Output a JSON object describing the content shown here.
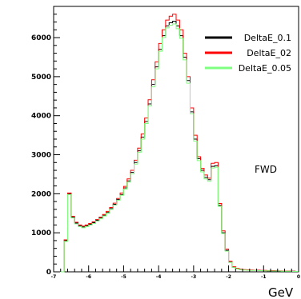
{
  "chart_data": {
    "type": "line",
    "title": "",
    "xlabel": "GeV",
    "ylabel": "",
    "xlim": [
      -7,
      0
    ],
    "ylim": [
      0,
      6800
    ],
    "x_ticks": [
      -7,
      -6,
      -5,
      -4,
      -3,
      -2,
      -1,
      0
    ],
    "x_tick_labels": [
      "-7",
      "-6",
      "-5",
      "-4",
      "-3",
      "-2",
      "-1",
      "0"
    ],
    "y_ticks": [
      0,
      1000,
      2000,
      3000,
      4000,
      5000,
      6000
    ],
    "y_tick_labels": [
      "0",
      "1000",
      "2000",
      "3000",
      "4000",
      "5000",
      "6000"
    ],
    "grid": false,
    "legend_position": "top-right",
    "annotation": "FWD",
    "x": [
      -6.95,
      -6.85,
      -6.75,
      -6.65,
      -6.55,
      -6.45,
      -6.35,
      -6.25,
      -6.15,
      -6.05,
      -5.95,
      -5.85,
      -5.75,
      -5.65,
      -5.55,
      -5.45,
      -5.35,
      -5.25,
      -5.15,
      -5.05,
      -4.95,
      -4.85,
      -4.75,
      -4.65,
      -4.55,
      -4.45,
      -4.35,
      -4.25,
      -4.15,
      -4.05,
      -3.95,
      -3.85,
      -3.75,
      -3.65,
      -3.55,
      -3.45,
      -3.35,
      -3.25,
      -3.15,
      -3.05,
      -2.95,
      -2.85,
      -2.75,
      -2.65,
      -2.55,
      -2.45,
      -2.35,
      -2.25,
      -2.15,
      -2.05,
      -1.95,
      -1.85,
      -1.75,
      -1.65,
      -1.55,
      -1.45,
      -1.35,
      -1.25,
      -1.15,
      -1.05,
      -0.95,
      -0.85,
      -0.75,
      -0.65,
      -0.55,
      -0.45,
      -0.35,
      -0.25,
      -0.15,
      -0.05
    ],
    "series": [
      {
        "name": "DeltaE_0.1",
        "color": "#000000",
        "values": [
          0,
          0,
          0,
          800,
          2000,
          1400,
          1250,
          1180,
          1150,
          1180,
          1220,
          1260,
          1320,
          1380,
          1450,
          1520,
          1620,
          1730,
          1850,
          1980,
          2150,
          2330,
          2550,
          2800,
          3100,
          3450,
          3850,
          4300,
          4800,
          5250,
          5700,
          6050,
          6300,
          6380,
          6420,
          6300,
          6050,
          5500,
          4900,
          4100,
          3400,
          2900,
          2600,
          2420,
          2360,
          2700,
          2720,
          1700,
          1000,
          550,
          250,
          120,
          80,
          60,
          50,
          45,
          40,
          40,
          35,
          30,
          30,
          25,
          25,
          25,
          20,
          20,
          20,
          15,
          15,
          10
        ]
      },
      {
        "name": "DeltaE_02",
        "color": "#ff0000",
        "values": [
          0,
          0,
          0,
          820,
          2020,
          1420,
          1270,
          1200,
          1170,
          1200,
          1240,
          1280,
          1340,
          1400,
          1470,
          1550,
          1650,
          1760,
          1880,
          2020,
          2190,
          2380,
          2600,
          2860,
          3170,
          3530,
          3940,
          4410,
          4920,
          5380,
          5850,
          6200,
          6450,
          6550,
          6600,
          6450,
          6200,
          5600,
          5000,
          4200,
          3500,
          2950,
          2650,
          2480,
          2400,
          2780,
          2800,
          1750,
          1050,
          580,
          270,
          130,
          90,
          70,
          55,
          50,
          45,
          40,
          40,
          35,
          35,
          30,
          30,
          25,
          25,
          20,
          20,
          20,
          15,
          10
        ]
      },
      {
        "name": "DeltaE_0.05",
        "color": "#7fff7f",
        "values": [
          0,
          0,
          0,
          780,
          1980,
          1380,
          1230,
          1160,
          1130,
          1160,
          1200,
          1240,
          1300,
          1360,
          1430,
          1500,
          1600,
          1710,
          1830,
          1960,
          2120,
          2300,
          2510,
          2760,
          3060,
          3400,
          3800,
          4250,
          4740,
          5200,
          5650,
          6000,
          6250,
          6320,
          6350,
          6230,
          5980,
          5430,
          4830,
          4050,
          3350,
          2850,
          2560,
          2380,
          2320,
          2660,
          2680,
          1680,
          980,
          530,
          240,
          110,
          75,
          55,
          45,
          40,
          35,
          35,
          30,
          30,
          25,
          25,
          20,
          20,
          20,
          15,
          15,
          15,
          10,
          10
        ]
      }
    ]
  }
}
